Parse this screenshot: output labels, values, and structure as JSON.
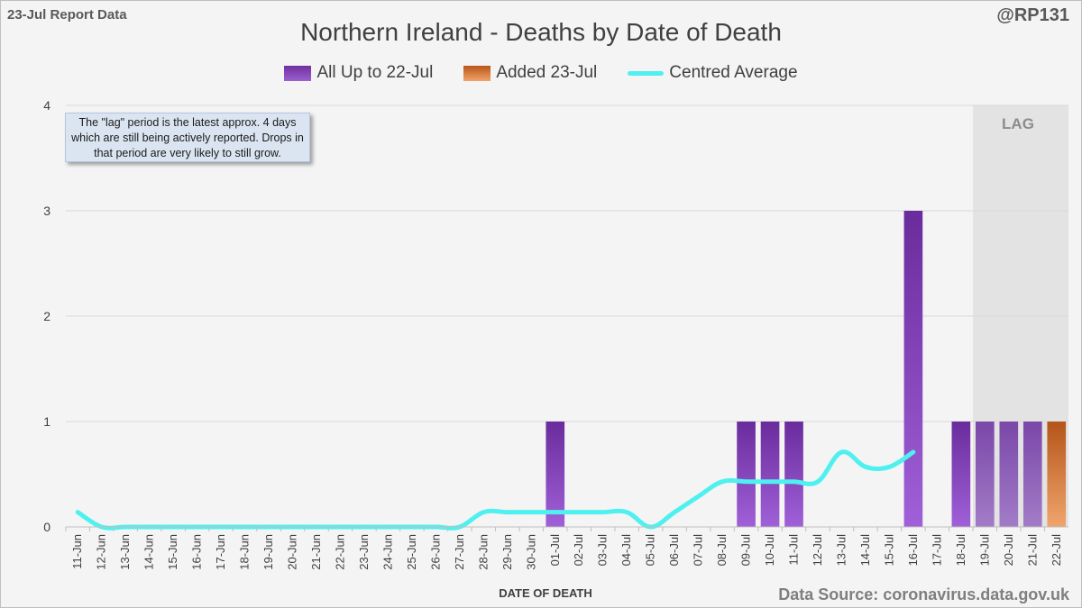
{
  "report_label": "23-Jul Report Data",
  "handle": "@RP131",
  "source": "Data Source: coronavirus.data.gov.uk",
  "note": "The \"lag\" period is the latest approx. 4 days which are still being actively reported.  Drops in that period are very likely to still grow.",
  "lag_label": "LAG",
  "colors": {
    "prev": "#7030a0",
    "new": "#c55a11",
    "avg": "#4ff0f0",
    "lag_band": "#e3e3e3",
    "grid": "#d9d9d9"
  },
  "chart_data": {
    "type": "bar",
    "title": "Northern Ireland - Deaths by Date of Death",
    "xlabel": "DATE OF DEATH",
    "ylabel": "",
    "ylim": [
      0,
      4
    ],
    "yticks": [
      0,
      1,
      2,
      3,
      4
    ],
    "legend": {
      "prev": "All Up to 22-Jul",
      "new": "Added 23-Jul",
      "avg": "Centred Average"
    },
    "categories": [
      "11-Jun",
      "12-Jun",
      "13-Jun",
      "14-Jun",
      "15-Jun",
      "16-Jun",
      "17-Jun",
      "18-Jun",
      "19-Jun",
      "20-Jun",
      "21-Jun",
      "22-Jun",
      "23-Jun",
      "24-Jun",
      "25-Jun",
      "26-Jun",
      "27-Jun",
      "28-Jun",
      "29-Jun",
      "30-Jun",
      "01-Jul",
      "02-Jul",
      "03-Jul",
      "04-Jul",
      "05-Jul",
      "06-Jul",
      "07-Jul",
      "08-Jul",
      "09-Jul",
      "10-Jul",
      "11-Jul",
      "12-Jul",
      "13-Jul",
      "14-Jul",
      "15-Jul",
      "16-Jul",
      "17-Jul",
      "18-Jul",
      "19-Jul",
      "20-Jul",
      "21-Jul",
      "22-Jul"
    ],
    "series": [
      {
        "name": "All Up to 22-Jul",
        "values": [
          0,
          0,
          0,
          0,
          0,
          0,
          0,
          0,
          0,
          0,
          0,
          0,
          0,
          0,
          0,
          0,
          0,
          0,
          0,
          0,
          1,
          0,
          0,
          0,
          0,
          0,
          0,
          0,
          1,
          1,
          1,
          0,
          0,
          0,
          0,
          3,
          0,
          1,
          1,
          1,
          1,
          0
        ]
      },
      {
        "name": "Added 23-Jul",
        "values": [
          0,
          0,
          0,
          0,
          0,
          0,
          0,
          0,
          0,
          0,
          0,
          0,
          0,
          0,
          0,
          0,
          0,
          0,
          0,
          0,
          0,
          0,
          0,
          0,
          0,
          0,
          0,
          0,
          0,
          0,
          0,
          0,
          0,
          0,
          0,
          0,
          0,
          0,
          0,
          0,
          0,
          1
        ]
      },
      {
        "name": "Centred Average",
        "values": [
          0.14,
          0,
          0,
          0,
          0,
          0,
          0,
          0,
          0,
          0,
          0,
          0,
          0,
          0,
          0,
          0,
          0,
          0.14,
          0.14,
          0.14,
          0.14,
          0.14,
          0.14,
          0.14,
          0,
          0.14,
          0.29,
          0.43,
          0.43,
          0.43,
          0.43,
          0.43,
          0.71,
          0.57,
          0.57,
          0.71,
          null,
          null,
          null,
          null,
          null,
          null
        ]
      }
    ],
    "lag_period": [
      "19-Jul",
      "22-Jul"
    ]
  }
}
